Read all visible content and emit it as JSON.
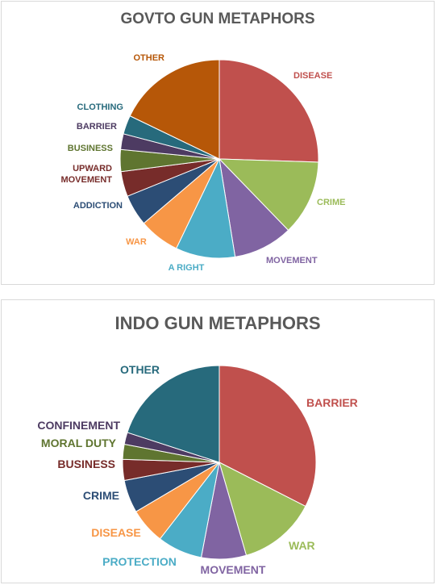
{
  "chart_data": [
    {
      "type": "pie",
      "title": "GOVTO GUN METAPHORS",
      "categories": [
        "DISEASE",
        "CRIME",
        "MOVEMENT",
        "A RIGHT",
        "WAR",
        "ADDICTION",
        "UPWARD MOVEMENT",
        "BUSINESS",
        "BARRIER",
        "CLOTHING",
        "OTHER"
      ],
      "values": [
        25,
        12,
        9.5,
        9.5,
        6.5,
        5,
        4,
        3.5,
        2.5,
        3,
        17.5
      ],
      "unit": "%",
      "colors": [
        "#c0504d",
        "#9bbb59",
        "#8064a2",
        "#4bacc6",
        "#f79646",
        "#2c4d75",
        "#772c2a",
        "#5f7530",
        "#4d3b62",
        "#276a7c",
        "#b65708"
      ]
    },
    {
      "type": "pie",
      "title": "INDO GUN METAPHORS",
      "categories": [
        "BARRIER",
        "WAR",
        "MOVEMENT",
        "PROTECTION",
        "DISEASE",
        "CRIME",
        "BUSINESS",
        "MORAL DUTY",
        "CONFINEMENT",
        "OTHER"
      ],
      "values": [
        32.5,
        13,
        7.5,
        7.5,
        6,
        5.5,
        3.5,
        2.5,
        2,
        20
      ],
      "unit": "%",
      "colors": [
        "#c0504d",
        "#9bbb59",
        "#8064a2",
        "#4bacc6",
        "#f79646",
        "#2c4d75",
        "#772c2a",
        "#5f7530",
        "#4d3b62",
        "#276a7c"
      ]
    }
  ]
}
